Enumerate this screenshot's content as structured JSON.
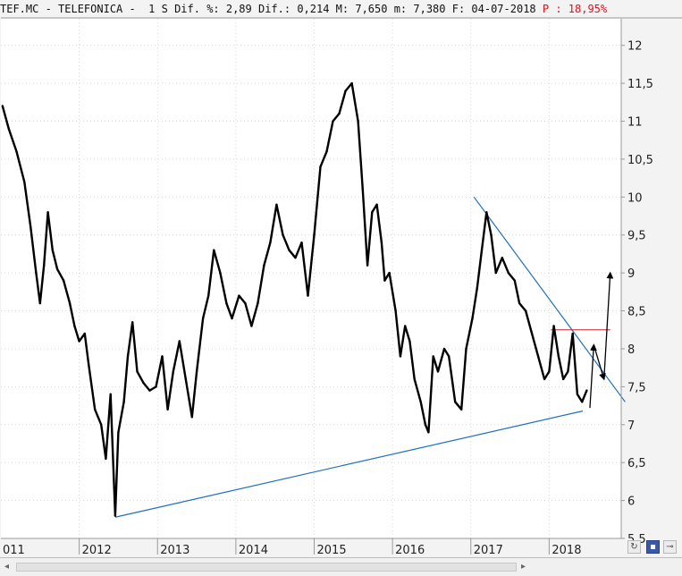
{
  "header": {
    "prefix": "TEF.MC - TELEFONICA -  1 S Dif. %: 2,89 Dif.: 0,214 M: 7,650 m: 7,380 F: 04-07-2018 ",
    "pct_label": "P : 18,95%"
  },
  "colors": {
    "price": "#000000",
    "trendline": "#1f6fbf",
    "resistance": "#c8202a",
    "pct_text": "#e0101a",
    "background": "#ffffff",
    "axis": "#9a9a9a"
  },
  "chart_data": {
    "type": "line",
    "title": "TEF.MC - TELEFONICA",
    "timeframe": "1 S",
    "xlabel": "",
    "ylabel": "",
    "x_ticks": [
      "011",
      "2012",
      "2013",
      "2014",
      "2015",
      "2016",
      "2017",
      "2018"
    ],
    "y_ticks": [
      "12",
      "11,5",
      "11",
      "10,5",
      "10",
      "9,5",
      "9",
      "8,5",
      "8",
      "7,5",
      "7",
      "6,5",
      "6",
      "5,5"
    ],
    "y_tick_values": [
      12,
      11.5,
      11,
      10.5,
      10,
      9.5,
      9,
      8.5,
      8,
      7.5,
      7,
      6.5,
      6,
      5.5
    ],
    "ylim": [
      5.5,
      12.35
    ],
    "xlim": [
      2011.0,
      2018.92
    ],
    "grid": true,
    "series": [
      {
        "values": [
          [
            2011.02,
            11.2
          ],
          [
            2011.1,
            10.9
          ],
          [
            2011.2,
            10.6
          ],
          [
            2011.3,
            10.2
          ],
          [
            2011.38,
            9.6
          ],
          [
            2011.45,
            9.0
          ],
          [
            2011.5,
            8.6
          ],
          [
            2011.55,
            9.1
          ],
          [
            2011.6,
            9.8
          ],
          [
            2011.66,
            9.3
          ],
          [
            2011.72,
            9.05
          ],
          [
            2011.8,
            8.9
          ],
          [
            2011.88,
            8.6
          ],
          [
            2011.94,
            8.3
          ],
          [
            2012.0,
            8.1
          ],
          [
            2012.07,
            8.2
          ],
          [
            2012.12,
            7.8
          ],
          [
            2012.2,
            7.2
          ],
          [
            2012.28,
            7.0
          ],
          [
            2012.34,
            6.55
          ],
          [
            2012.4,
            7.4
          ],
          [
            2012.46,
            5.8
          ],
          [
            2012.5,
            6.9
          ],
          [
            2012.57,
            7.3
          ],
          [
            2012.62,
            7.9
          ],
          [
            2012.68,
            8.35
          ],
          [
            2012.74,
            7.7
          ],
          [
            2012.82,
            7.55
          ],
          [
            2012.9,
            7.45
          ],
          [
            2012.98,
            7.5
          ],
          [
            2013.06,
            7.9
          ],
          [
            2013.13,
            7.2
          ],
          [
            2013.2,
            7.7
          ],
          [
            2013.28,
            8.1
          ],
          [
            2013.36,
            7.6
          ],
          [
            2013.44,
            7.1
          ],
          [
            2013.5,
            7.7
          ],
          [
            2013.58,
            8.4
          ],
          [
            2013.65,
            8.7
          ],
          [
            2013.72,
            9.3
          ],
          [
            2013.8,
            9.0
          ],
          [
            2013.88,
            8.6
          ],
          [
            2013.95,
            8.4
          ],
          [
            2014.04,
            8.7
          ],
          [
            2014.12,
            8.6
          ],
          [
            2014.2,
            8.3
          ],
          [
            2014.28,
            8.6
          ],
          [
            2014.36,
            9.1
          ],
          [
            2014.44,
            9.4
          ],
          [
            2014.52,
            9.9
          ],
          [
            2014.6,
            9.5
          ],
          [
            2014.68,
            9.3
          ],
          [
            2014.76,
            9.2
          ],
          [
            2014.84,
            9.4
          ],
          [
            2014.92,
            8.7
          ],
          [
            2015.0,
            9.5
          ],
          [
            2015.08,
            10.4
          ],
          [
            2015.16,
            10.6
          ],
          [
            2015.24,
            11.0
          ],
          [
            2015.32,
            11.1
          ],
          [
            2015.4,
            11.4
          ],
          [
            2015.48,
            11.5
          ],
          [
            2015.56,
            11.0
          ],
          [
            2015.62,
            10.1
          ],
          [
            2015.68,
            9.1
          ],
          [
            2015.74,
            9.8
          ],
          [
            2015.8,
            9.9
          ],
          [
            2015.86,
            9.4
          ],
          [
            2015.9,
            8.9
          ],
          [
            2015.96,
            9.0
          ],
          [
            2016.04,
            8.5
          ],
          [
            2016.1,
            7.9
          ],
          [
            2016.16,
            8.3
          ],
          [
            2016.22,
            8.1
          ],
          [
            2016.28,
            7.6
          ],
          [
            2016.36,
            7.3
          ],
          [
            2016.42,
            7.0
          ],
          [
            2016.46,
            6.9
          ],
          [
            2016.52,
            7.9
          ],
          [
            2016.58,
            7.7
          ],
          [
            2016.66,
            8.0
          ],
          [
            2016.72,
            7.9
          ],
          [
            2016.8,
            7.3
          ],
          [
            2016.88,
            7.2
          ],
          [
            2016.94,
            8.0
          ],
          [
            2017.02,
            8.4
          ],
          [
            2017.08,
            8.8
          ],
          [
            2017.14,
            9.3
          ],
          [
            2017.2,
            9.8
          ],
          [
            2017.26,
            9.5
          ],
          [
            2017.32,
            9.0
          ],
          [
            2017.4,
            9.2
          ],
          [
            2017.48,
            9.0
          ],
          [
            2017.56,
            8.9
          ],
          [
            2017.62,
            8.6
          ],
          [
            2017.7,
            8.5
          ],
          [
            2017.78,
            8.2
          ],
          [
            2017.86,
            7.9
          ],
          [
            2017.94,
            7.6
          ],
          [
            2018.0,
            7.7
          ],
          [
            2018.06,
            8.3
          ],
          [
            2018.12,
            7.9
          ],
          [
            2018.18,
            7.6
          ],
          [
            2018.24,
            7.7
          ],
          [
            2018.3,
            8.2
          ],
          [
            2018.36,
            7.4
          ],
          [
            2018.42,
            7.3
          ],
          [
            2018.48,
            7.45
          ]
        ]
      }
    ],
    "annotations": [
      {
        "type": "trendline",
        "kind": "support",
        "from": [
          2012.46,
          5.78
        ],
        "to": [
          2018.43,
          7.18
        ]
      },
      {
        "type": "trendline",
        "kind": "resistance",
        "from": [
          2017.04,
          10.0
        ],
        "to": [
          2018.97,
          7.3
        ]
      },
      {
        "type": "hline",
        "value": 8.25,
        "from_x": 2018.02,
        "to_x": 2018.78
      },
      {
        "type": "arrow",
        "from": [
          2018.52,
          7.22
        ],
        "to": [
          2018.57,
          8.05
        ]
      },
      {
        "type": "arrow",
        "from": [
          2018.57,
          8.05
        ],
        "to": [
          2018.7,
          7.6
        ]
      },
      {
        "type": "arrow",
        "from": [
          2018.7,
          7.6
        ],
        "to": [
          2018.78,
          9.0
        ]
      }
    ]
  }
}
